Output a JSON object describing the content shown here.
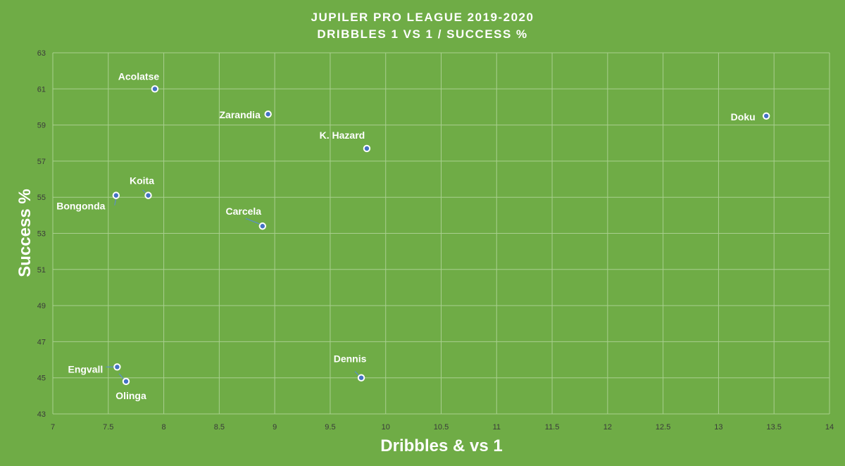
{
  "chart_data": {
    "type": "scatter",
    "title": "JUPILER PRO LEAGUE 2019-2020",
    "subtitle": "DRIBBLES 1 VS 1 / SUCCESS %",
    "xlabel": "Dribbles & vs 1",
    "ylabel": "Success %",
    "xlim": [
      7,
      14
    ],
    "ylim": [
      43,
      63
    ],
    "x_ticks": [
      "7",
      "7.5",
      "8",
      "8.5",
      "9",
      "9.5",
      "10",
      "10.5",
      "11",
      "11.5",
      "12",
      "12.5",
      "13",
      "13.5",
      "14"
    ],
    "y_ticks": [
      "43",
      "45",
      "47",
      "49",
      "51",
      "53",
      "55",
      "57",
      "59",
      "61",
      "63"
    ],
    "grid": true,
    "points": [
      {
        "label": "Acolatse",
        "x": 7.92,
        "y": 61.0
      },
      {
        "label": "Zarandia",
        "x": 8.94,
        "y": 59.6
      },
      {
        "label": "K. Hazard",
        "x": 9.83,
        "y": 57.7
      },
      {
        "label": "Doku",
        "x": 13.43,
        "y": 59.5
      },
      {
        "label": "Koita",
        "x": 7.86,
        "y": 55.1
      },
      {
        "label": "Bongonda",
        "x": 7.57,
        "y": 55.1
      },
      {
        "label": "Carcela",
        "x": 8.89,
        "y": 53.4
      },
      {
        "label": "Engvall",
        "x": 7.58,
        "y": 45.6
      },
      {
        "label": "Olinga",
        "x": 7.66,
        "y": 44.8
      },
      {
        "label": "Dennis",
        "x": 9.78,
        "y": 45.0
      }
    ],
    "colors": {
      "background": "#6fac46",
      "gridlines": "#a9cf8f",
      "marker_fill": "#4472c4",
      "marker_edge": "#ffffff",
      "text": "#ffffff"
    }
  }
}
